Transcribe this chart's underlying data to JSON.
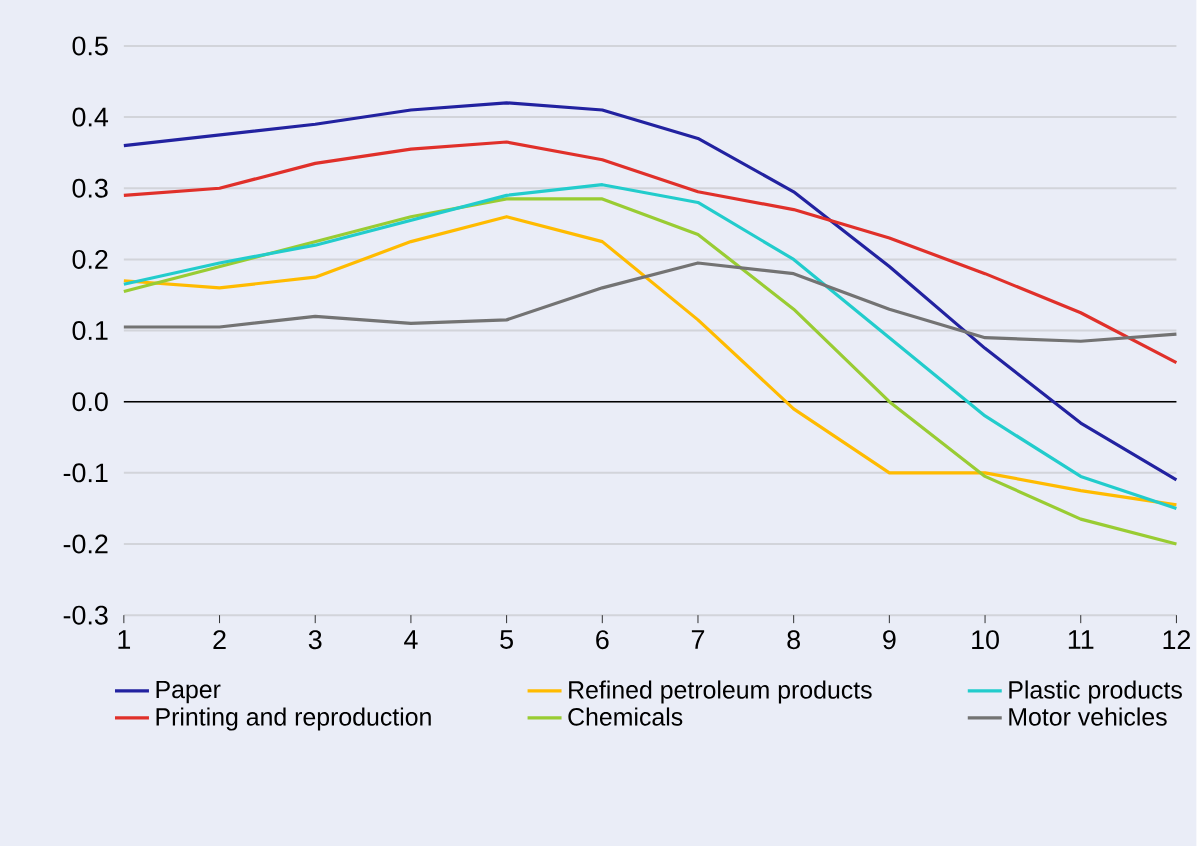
{
  "chart_data": {
    "type": "line",
    "x": [
      1,
      2,
      3,
      4,
      5,
      6,
      7,
      8,
      9,
      10,
      11,
      12
    ],
    "xlim": [
      1,
      12
    ],
    "xticks": [
      1,
      2,
      3,
      4,
      5,
      6,
      7,
      8,
      9,
      10,
      11,
      12
    ],
    "ylim": [
      -0.3,
      0.5
    ],
    "yticks": [
      -0.3,
      -0.2,
      -0.1,
      {
        "value": 0,
        "label": "0.0"
      },
      0.1,
      0.2,
      0.3,
      0.4,
      0.5
    ],
    "grid": "y",
    "legend": "bottom",
    "marker": "none",
    "line_style": "solid",
    "ref_lines": [
      {
        "axis": "y",
        "value": 0,
        "color": "#000000"
      }
    ],
    "series": [
      {
        "name": "Paper",
        "color": "#2222a0",
        "values": [
          0.36,
          0.375,
          0.39,
          0.41,
          0.42,
          0.41,
          0.37,
          0.295,
          0.19,
          0.075,
          -0.03,
          -0.11
        ]
      },
      {
        "name": "Printing and reproduction",
        "color": "#e0302a",
        "values": [
          0.29,
          0.3,
          0.335,
          0.355,
          0.365,
          0.34,
          0.295,
          0.27,
          0.23,
          0.18,
          0.125,
          0.055
        ]
      },
      {
        "name": "Refined petroleum products",
        "color": "#ffbb00",
        "values": [
          0.17,
          0.16,
          0.175,
          0.225,
          0.26,
          0.225,
          0.115,
          -0.01,
          -0.1,
          -0.1,
          -0.125,
          -0.145
        ]
      },
      {
        "name": "Chemicals",
        "color": "#99cc33",
        "values": [
          0.155,
          0.19,
          0.225,
          0.26,
          0.285,
          0.285,
          0.235,
          0.13,
          0.0,
          -0.105,
          -0.165,
          -0.2
        ]
      },
      {
        "name": "Plastic products",
        "color": "#22cccc",
        "values": [
          0.165,
          0.195,
          0.22,
          0.255,
          0.29,
          0.305,
          0.28,
          0.2,
          0.09,
          -0.02,
          -0.105,
          -0.15
        ]
      },
      {
        "name": "Motor vehicles",
        "color": "#737373",
        "values": [
          0.105,
          0.105,
          0.12,
          0.11,
          0.115,
          0.16,
          0.195,
          0.18,
          0.13,
          0.09,
          0.085,
          0.095
        ]
      }
    ]
  }
}
